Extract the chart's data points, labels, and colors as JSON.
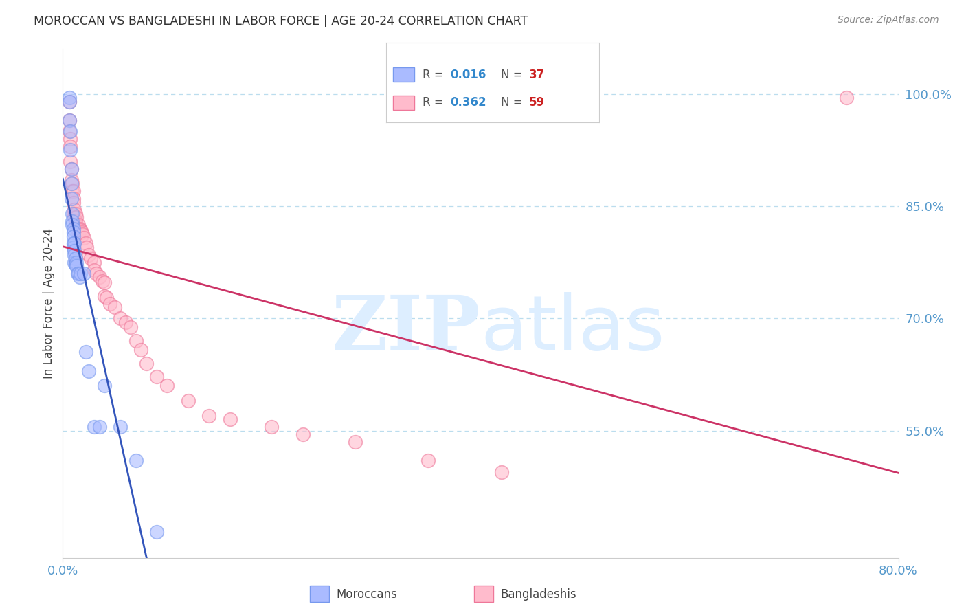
{
  "title": "MOROCCAN VS BANGLADESHI IN LABOR FORCE | AGE 20-24 CORRELATION CHART",
  "source": "Source: ZipAtlas.com",
  "ylabel": "In Labor Force | Age 20-24",
  "x_tick_left": "0.0%",
  "x_tick_right": "80.0%",
  "y_tick_labels": [
    "55.0%",
    "70.0%",
    "85.0%",
    "100.0%"
  ],
  "y_tick_values": [
    0.55,
    0.7,
    0.85,
    1.0
  ],
  "moroccan_label": "Moroccans",
  "bangladeshi_label": "Bangladeshis",
  "moroccan_edge_color": "#7799ee",
  "moroccan_face_color": "#aabbff",
  "bangladeshi_edge_color": "#ee7799",
  "bangladeshi_face_color": "#ffbbcc",
  "trend_moroccan_color": "#3355bb",
  "trend_bangladeshi_color": "#cc3366",
  "grid_color": "#bbddee",
  "background_color": "#ffffff",
  "watermark_color": "#ddeeff",
  "legend_box_color": "#cccccc",
  "r_value_color": "#3388cc",
  "n_value_color": "#cc2222",
  "xmin": 0.0,
  "xmax": 0.8,
  "ymin": 0.38,
  "ymax": 1.06,
  "moroccan_x": [
    0.006,
    0.006,
    0.006,
    0.007,
    0.007,
    0.008,
    0.008,
    0.008,
    0.009,
    0.009,
    0.009,
    0.01,
    0.01,
    0.01,
    0.01,
    0.01,
    0.011,
    0.011,
    0.011,
    0.011,
    0.012,
    0.012,
    0.013,
    0.013,
    0.014,
    0.015,
    0.016,
    0.017,
    0.02,
    0.022,
    0.025,
    0.03,
    0.035,
    0.04,
    0.055,
    0.07,
    0.09
  ],
  "moroccan_y": [
    0.995,
    0.99,
    0.965,
    0.95,
    0.925,
    0.9,
    0.88,
    0.86,
    0.84,
    0.83,
    0.825,
    0.82,
    0.815,
    0.81,
    0.8,
    0.795,
    0.8,
    0.79,
    0.785,
    0.775,
    0.78,
    0.772,
    0.775,
    0.77,
    0.76,
    0.76,
    0.755,
    0.76,
    0.76,
    0.655,
    0.63,
    0.555,
    0.555,
    0.61,
    0.555,
    0.51,
    0.415
  ],
  "bangladeshi_x": [
    0.006,
    0.006,
    0.006,
    0.007,
    0.007,
    0.007,
    0.008,
    0.008,
    0.009,
    0.009,
    0.01,
    0.01,
    0.01,
    0.01,
    0.011,
    0.011,
    0.012,
    0.012,
    0.013,
    0.013,
    0.014,
    0.015,
    0.015,
    0.016,
    0.017,
    0.018,
    0.019,
    0.02,
    0.022,
    0.023,
    0.025,
    0.027,
    0.03,
    0.03,
    0.032,
    0.035,
    0.038,
    0.04,
    0.04,
    0.042,
    0.045,
    0.05,
    0.055,
    0.06,
    0.065,
    0.07,
    0.075,
    0.08,
    0.09,
    0.1,
    0.12,
    0.14,
    0.16,
    0.2,
    0.23,
    0.28,
    0.35,
    0.42,
    0.75
  ],
  "bangladeshi_y": [
    0.99,
    0.965,
    0.95,
    0.94,
    0.93,
    0.91,
    0.9,
    0.885,
    0.88,
    0.87,
    0.87,
    0.86,
    0.855,
    0.84,
    0.845,
    0.835,
    0.84,
    0.83,
    0.835,
    0.825,
    0.82,
    0.825,
    0.815,
    0.82,
    0.818,
    0.815,
    0.812,
    0.808,
    0.8,
    0.795,
    0.785,
    0.78,
    0.775,
    0.765,
    0.76,
    0.755,
    0.75,
    0.748,
    0.73,
    0.728,
    0.72,
    0.715,
    0.7,
    0.695,
    0.688,
    0.67,
    0.658,
    0.64,
    0.622,
    0.61,
    0.59,
    0.57,
    0.565,
    0.555,
    0.545,
    0.535,
    0.51,
    0.495,
    0.995
  ]
}
